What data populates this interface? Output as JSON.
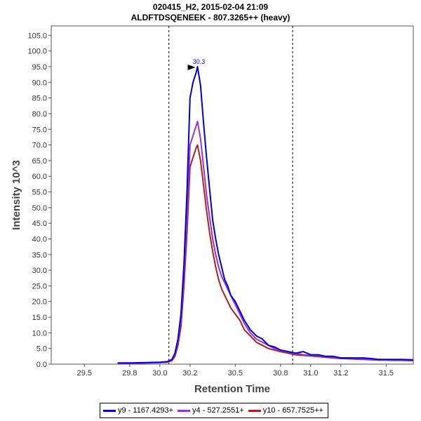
{
  "header": {
    "title_line1": "020415_H2, 2015-02-04 21:09",
    "title_line2": "ALDFTDSQENEEK - 807.3265++ (heavy)"
  },
  "chart_data": {
    "type": "line",
    "title": "020415_H2, 2015-02-04 21:09 / ALDFTDSQENEEK - 807.3265++ (heavy)",
    "xlabel": "Retention Time",
    "ylabel": "Intensity 10^3",
    "xlim": [
      29.28,
      31.68
    ],
    "ylim": [
      0,
      108
    ],
    "x_ticks": [
      29.5,
      29.8,
      30.0,
      30.2,
      30.5,
      30.8,
      31.0,
      31.2,
      31.5
    ],
    "x_tick_labels": [
      "29.5",
      "29.8",
      "30.0",
      "30.2",
      "30.5",
      "30.8",
      "31.0",
      "31.2",
      "31.5"
    ],
    "y_ticks": [
      0,
      5,
      10,
      15,
      20,
      25,
      30,
      35,
      40,
      45,
      50,
      55,
      60,
      65,
      70,
      75,
      80,
      85,
      90,
      95,
      100,
      105
    ],
    "y_tick_labels": [
      "0.0",
      "5.0",
      "10.0",
      "15.0",
      "20.0",
      "25.0",
      "30.0",
      "35.0",
      "40.0",
      "45.0",
      "50.0",
      "55.0",
      "60.0",
      "65.0",
      "70.0",
      "75.0",
      "80.0",
      "85.0",
      "90.0",
      "95.0",
      "100.0",
      "105.0"
    ],
    "integration_boundaries": [
      30.06,
      30.88
    ],
    "peak_annotation": {
      "label": "30.3",
      "x": 30.25,
      "y": 95.0
    },
    "series": [
      {
        "name": "y9 - 1167.4293+",
        "color": "#0000dd",
        "x": [
          29.72,
          29.8,
          29.9,
          30.0,
          30.05,
          30.08,
          30.1,
          30.12,
          30.14,
          30.16,
          30.18,
          30.2,
          30.22,
          30.24,
          30.25,
          30.27,
          30.29,
          30.31,
          30.33,
          30.35,
          30.37,
          30.39,
          30.41,
          30.43,
          30.45,
          30.47,
          30.5,
          30.53,
          30.56,
          30.6,
          30.64,
          30.68,
          30.72,
          30.76,
          30.8,
          30.85,
          30.9,
          30.95,
          31.0,
          31.05,
          31.1,
          31.15,
          31.2,
          31.25,
          31.3,
          31.35,
          31.4,
          31.45,
          31.5,
          31.55,
          31.6,
          31.68
        ],
        "y": [
          0.4,
          0.4,
          0.5,
          0.6,
          0.8,
          1.5,
          3.5,
          8.0,
          16.0,
          32.0,
          55.0,
          85.0,
          90.0,
          93.0,
          95.0,
          89.0,
          77.0,
          66.0,
          56.0,
          46.0,
          40.0,
          35.0,
          31.0,
          27.0,
          25.0,
          22.0,
          20.0,
          17.0,
          14.0,
          11.0,
          9.0,
          8.0,
          6.0,
          5.5,
          4.5,
          4.0,
          3.5,
          4.0,
          3.0,
          3.0,
          2.5,
          2.5,
          2.0,
          2.0,
          2.0,
          2.0,
          1.8,
          1.5,
          1.5,
          1.5,
          1.5,
          1.4
        ]
      },
      {
        "name": "y4 - 527.2551+",
        "color": "#9933cc",
        "x": [
          29.72,
          29.8,
          29.9,
          30.0,
          30.05,
          30.08,
          30.1,
          30.12,
          30.14,
          30.16,
          30.18,
          30.2,
          30.22,
          30.24,
          30.25,
          30.27,
          30.29,
          30.31,
          30.33,
          30.35,
          30.37,
          30.39,
          30.41,
          30.43,
          30.45,
          30.47,
          30.5,
          30.53,
          30.56,
          30.6,
          30.64,
          30.68,
          30.72,
          30.76,
          30.8,
          30.85,
          30.9,
          30.95,
          31.0,
          31.05,
          31.1,
          31.15,
          31.2,
          31.25,
          31.3,
          31.35,
          31.4,
          31.45,
          31.5,
          31.55,
          31.6,
          31.68
        ],
        "y": [
          0.3,
          0.3,
          0.4,
          0.5,
          0.7,
          1.3,
          3.0,
          7.0,
          14.0,
          28.0,
          47.0,
          70.0,
          73.0,
          76.0,
          77.5,
          72.0,
          63.0,
          54.0,
          47.0,
          40.0,
          35.0,
          31.0,
          28.0,
          26.0,
          24.0,
          22.0,
          19.0,
          16.0,
          13.0,
          10.0,
          8.0,
          7.0,
          6.0,
          5.0,
          4.5,
          4.0,
          3.5,
          3.0,
          2.8,
          2.6,
          2.4,
          2.2,
          2.0,
          2.0,
          1.8,
          1.6,
          1.5,
          1.5,
          1.4,
          1.3,
          1.3,
          1.2
        ]
      },
      {
        "name": "y10 - 657.7525++",
        "color": "#aa2222",
        "x": [
          29.72,
          29.8,
          29.9,
          30.0,
          30.05,
          30.08,
          30.1,
          30.12,
          30.14,
          30.16,
          30.18,
          30.2,
          30.22,
          30.24,
          30.25,
          30.27,
          30.29,
          30.31,
          30.33,
          30.35,
          30.37,
          30.39,
          30.41,
          30.43,
          30.45,
          30.47,
          30.5,
          30.53,
          30.56,
          30.6,
          30.64,
          30.68,
          30.72,
          30.76,
          30.8,
          30.85,
          30.9,
          30.95,
          31.0,
          31.05,
          31.1,
          31.15,
          31.2,
          31.25,
          31.3,
          31.35,
          31.4,
          31.45,
          31.5,
          31.55,
          31.6,
          31.68
        ],
        "y": [
          0.3,
          0.3,
          0.4,
          0.5,
          0.6,
          1.1,
          2.5,
          6.0,
          12.0,
          25.0,
          42.0,
          63.0,
          66.0,
          69.0,
          70.0,
          65.0,
          57.0,
          49.0,
          42.0,
          36.0,
          31.0,
          27.0,
          24.0,
          22.0,
          20.0,
          18.0,
          16.0,
          14.0,
          11.0,
          9.0,
          7.0,
          6.0,
          5.0,
          4.5,
          4.0,
          3.5,
          3.0,
          2.8,
          2.6,
          2.4,
          2.2,
          2.0,
          1.8,
          1.7,
          1.6,
          1.5,
          1.4,
          1.3,
          1.3,
          1.2,
          1.2,
          1.1
        ]
      }
    ],
    "legend_position": "bottom-center"
  }
}
